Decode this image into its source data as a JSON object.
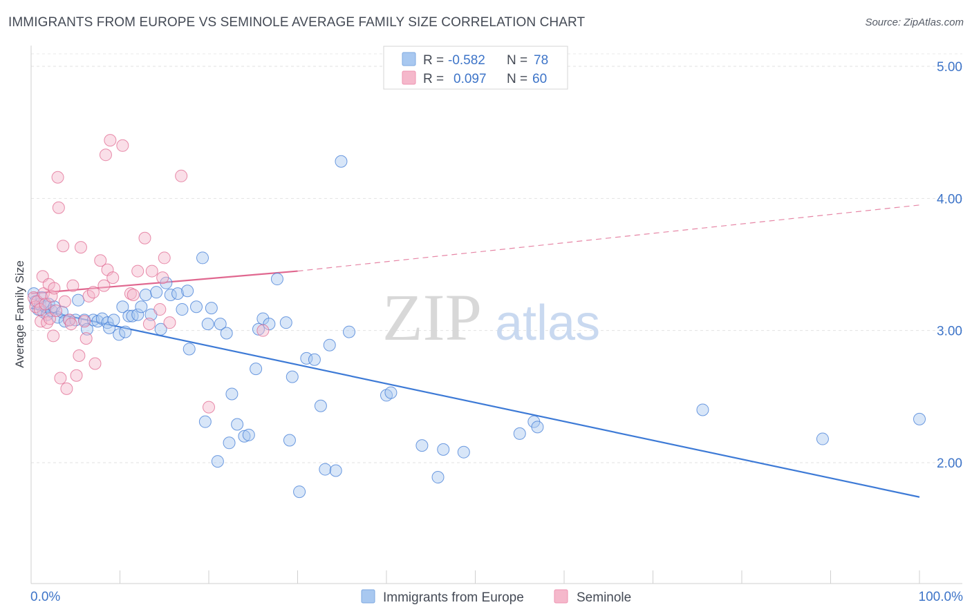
{
  "title": "IMMIGRANTS FROM EUROPE VS SEMINOLE AVERAGE FAMILY SIZE CORRELATION CHART",
  "source": "Source: ZipAtlas.com",
  "watermark": {
    "zip": "ZIP",
    "atlas": "atlas"
  },
  "legend_top": {
    "rows": [
      {
        "r_label": "R =",
        "r_value": "-0.582",
        "n_label": "N =",
        "n_value": "78",
        "color": "#a8c8f0"
      },
      {
        "r_label": "R =",
        "r_value": "0.097",
        "n_label": "N =",
        "n_value": "60",
        "color": "#f5b8cb"
      }
    ]
  },
  "legend_bottom": [
    {
      "label": "Immigrants from Europe",
      "color": "#a8c8f0"
    },
    {
      "label": "Seminole",
      "color": "#f5b8cb"
    }
  ],
  "chart_data": {
    "type": "scatter",
    "title": "IMMIGRANTS FROM EUROPE VS SEMINOLE AVERAGE FAMILY SIZE CORRELATION CHART",
    "xlabel": "",
    "ylabel": "Average Family Size",
    "xlim": [
      0,
      100
    ],
    "ylim": [
      1.0,
      5.1
    ],
    "x_tick_labels": [
      "0.0%",
      "100.0%"
    ],
    "y_ticks": [
      2.0,
      3.0,
      4.0,
      5.0
    ],
    "y_tick_labels": [
      "2.00",
      "3.00",
      "4.00",
      "5.00"
    ],
    "grid": true,
    "series": [
      {
        "name": "Immigrants from Europe",
        "color": "#3d7ad6",
        "fill": "#a8c8f0",
        "trend": {
          "x": [
            0,
            100
          ],
          "y": [
            3.17,
            1.74
          ],
          "style": "solid"
        },
        "points": [
          [
            0.3,
            3.28
          ],
          [
            0.5,
            3.22
          ],
          [
            0.8,
            3.16
          ],
          [
            1.0,
            3.2
          ],
          [
            1.2,
            3.25
          ],
          [
            1.4,
            3.14
          ],
          [
            1.6,
            3.18
          ],
          [
            1.8,
            3.12
          ],
          [
            2.0,
            3.2
          ],
          [
            2.3,
            3.15
          ],
          [
            2.6,
            3.18
          ],
          [
            3.0,
            3.1
          ],
          [
            3.5,
            3.14
          ],
          [
            3.8,
            3.07
          ],
          [
            4.3,
            3.08
          ],
          [
            5.0,
            3.08
          ],
          [
            5.3,
            3.23
          ],
          [
            6.0,
            3.08
          ],
          [
            6.3,
            3.01
          ],
          [
            7.0,
            3.08
          ],
          [
            7.5,
            3.07
          ],
          [
            8.0,
            3.09
          ],
          [
            8.6,
            3.06
          ],
          [
            8.8,
            3.02
          ],
          [
            9.3,
            3.08
          ],
          [
            9.9,
            2.97
          ],
          [
            10.3,
            3.18
          ],
          [
            10.6,
            2.99
          ],
          [
            11.0,
            3.11
          ],
          [
            11.4,
            3.11
          ],
          [
            12.0,
            3.12
          ],
          [
            12.4,
            3.18
          ],
          [
            12.9,
            3.27
          ],
          [
            13.5,
            3.12
          ],
          [
            14.1,
            3.29
          ],
          [
            14.6,
            3.01
          ],
          [
            15.2,
            3.36
          ],
          [
            15.7,
            3.27
          ],
          [
            16.5,
            3.28
          ],
          [
            17.0,
            3.16
          ],
          [
            17.6,
            3.3
          ],
          [
            17.8,
            2.86
          ],
          [
            18.6,
            3.18
          ],
          [
            19.3,
            3.55
          ],
          [
            19.6,
            2.31
          ],
          [
            19.9,
            3.05
          ],
          [
            20.3,
            3.17
          ],
          [
            21.0,
            2.01
          ],
          [
            21.3,
            3.05
          ],
          [
            22.0,
            2.98
          ],
          [
            22.3,
            2.15
          ],
          [
            22.6,
            2.52
          ],
          [
            23.2,
            2.29
          ],
          [
            24.0,
            2.2
          ],
          [
            24.5,
            2.21
          ],
          [
            25.3,
            2.71
          ],
          [
            25.6,
            3.01
          ],
          [
            26.1,
            3.09
          ],
          [
            26.8,
            3.05
          ],
          [
            27.7,
            3.39
          ],
          [
            28.7,
            3.06
          ],
          [
            29.1,
            2.17
          ],
          [
            29.4,
            2.65
          ],
          [
            30.2,
            1.78
          ],
          [
            31.0,
            2.79
          ],
          [
            31.9,
            2.78
          ],
          [
            32.6,
            2.43
          ],
          [
            33.1,
            1.95
          ],
          [
            33.6,
            2.89
          ],
          [
            34.3,
            1.94
          ],
          [
            34.9,
            4.28
          ],
          [
            35.8,
            2.99
          ],
          [
            40.0,
            2.51
          ],
          [
            40.5,
            2.53
          ],
          [
            44.0,
            2.13
          ],
          [
            45.8,
            1.89
          ],
          [
            46.4,
            2.1
          ],
          [
            48.7,
            2.08
          ],
          [
            55.0,
            2.22
          ],
          [
            56.6,
            2.31
          ],
          [
            57.0,
            2.27
          ],
          [
            75.6,
            2.4
          ],
          [
            89.1,
            2.18
          ],
          [
            100.0,
            2.33
          ]
        ]
      },
      {
        "name": "Seminole",
        "color": "#e0678f",
        "fill": "#f5b8cb",
        "trend": {
          "x": [
            0,
            30
          ],
          "y": [
            3.28,
            3.45
          ],
          "style": "solid",
          "extension": {
            "x": [
              30,
              100
            ],
            "y": [
              3.45,
              3.95
            ],
            "style": "dashed"
          }
        },
        "points": [
          [
            0.3,
            3.25
          ],
          [
            0.5,
            3.18
          ],
          [
            0.7,
            3.22
          ],
          [
            1.0,
            3.16
          ],
          [
            1.1,
            3.07
          ],
          [
            1.3,
            3.41
          ],
          [
            1.4,
            3.28
          ],
          [
            1.6,
            3.2
          ],
          [
            1.8,
            3.06
          ],
          [
            2.0,
            3.35
          ],
          [
            2.1,
            3.09
          ],
          [
            2.3,
            3.26
          ],
          [
            2.5,
            2.96
          ],
          [
            2.6,
            3.32
          ],
          [
            2.8,
            3.15
          ],
          [
            3.0,
            4.16
          ],
          [
            3.1,
            3.93
          ],
          [
            3.3,
            2.64
          ],
          [
            3.6,
            3.64
          ],
          [
            3.8,
            3.22
          ],
          [
            4.0,
            2.56
          ],
          [
            4.3,
            3.08
          ],
          [
            4.5,
            3.05
          ],
          [
            4.7,
            3.34
          ],
          [
            5.1,
            2.66
          ],
          [
            5.4,
            2.81
          ],
          [
            5.6,
            3.63
          ],
          [
            6.0,
            3.07
          ],
          [
            6.2,
            2.94
          ],
          [
            6.5,
            3.26
          ],
          [
            7.0,
            3.29
          ],
          [
            7.2,
            2.75
          ],
          [
            7.8,
            3.53
          ],
          [
            8.2,
            3.34
          ],
          [
            8.4,
            4.33
          ],
          [
            8.6,
            3.46
          ],
          [
            8.9,
            4.44
          ],
          [
            9.2,
            3.4
          ],
          [
            10.3,
            4.4
          ],
          [
            11.2,
            3.28
          ],
          [
            11.5,
            3.27
          ],
          [
            12.0,
            3.45
          ],
          [
            12.8,
            3.7
          ],
          [
            13.3,
            3.05
          ],
          [
            13.6,
            3.45
          ],
          [
            14.5,
            3.16
          ],
          [
            14.8,
            3.4
          ],
          [
            15.0,
            3.55
          ],
          [
            15.6,
            3.06
          ],
          [
            16.9,
            4.17
          ],
          [
            20.0,
            2.42
          ],
          [
            26.1,
            3.0
          ]
        ]
      }
    ]
  }
}
